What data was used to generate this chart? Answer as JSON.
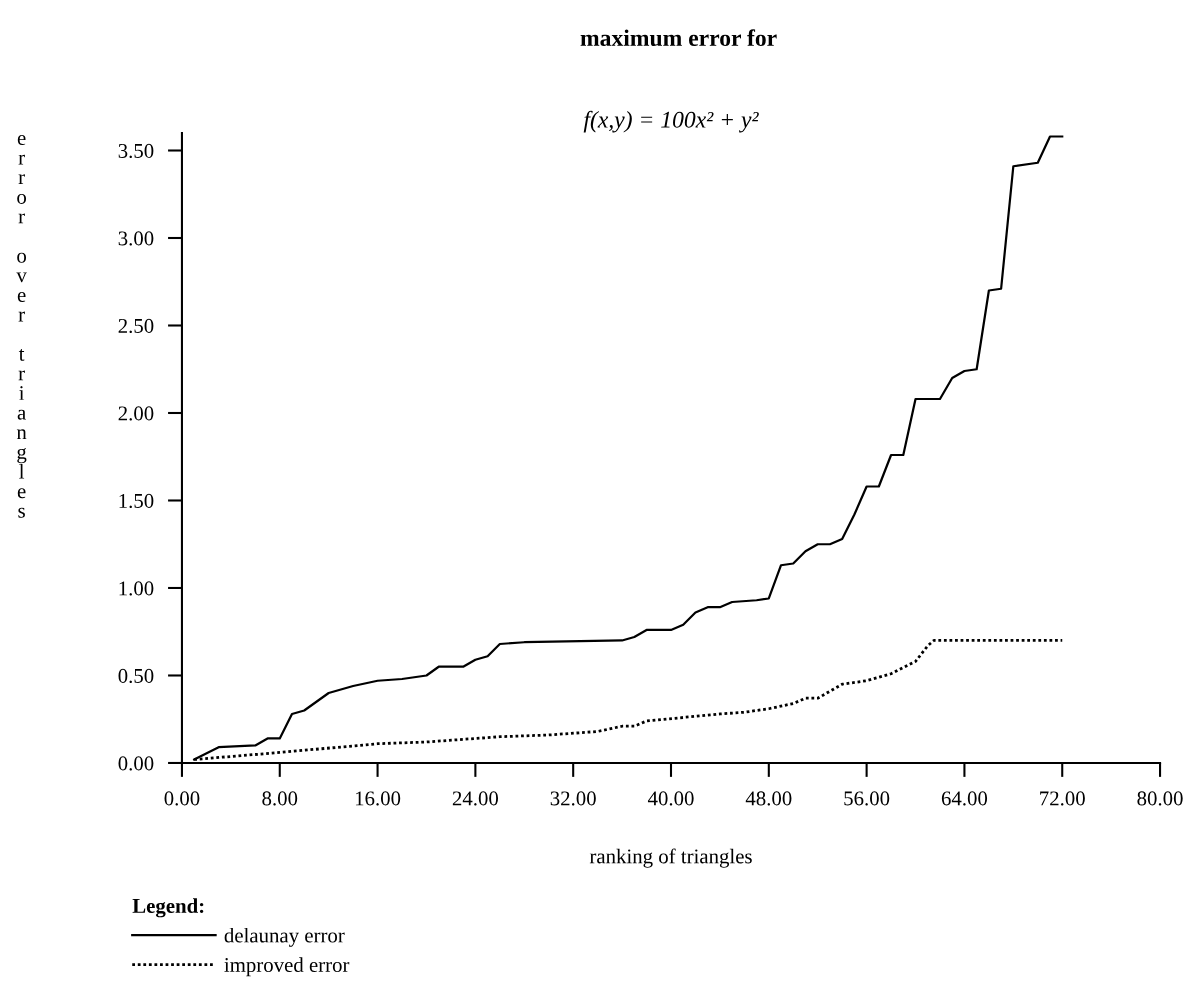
{
  "chart_data": {
    "type": "line",
    "title": "maximum error for",
    "subtitle": "f(x,y) = 100x² + y²",
    "xlabel": "ranking of triangles",
    "ylabel": "error over triangles",
    "legend_title": "Legend:",
    "legend": "bottom left",
    "xlim": [
      0,
      80
    ],
    "ylim": [
      0,
      3.6
    ],
    "xticks": [
      {
        "value": 0,
        "label": "0.00"
      },
      {
        "value": 8,
        "label": "8.00"
      },
      {
        "value": 16,
        "label": "16.00"
      },
      {
        "value": 24,
        "label": "24.00"
      },
      {
        "value": 32,
        "label": "32.00"
      },
      {
        "value": 40,
        "label": "40.00"
      },
      {
        "value": 48,
        "label": "48.00"
      },
      {
        "value": 56,
        "label": "56.00"
      },
      {
        "value": 64,
        "label": "64.00"
      },
      {
        "value": 72,
        "label": "72.00"
      },
      {
        "value": 80,
        "label": "80.00"
      }
    ],
    "yticks": [
      {
        "value": 0,
        "label": "0.00"
      },
      {
        "value": 0.5,
        "label": "0.50"
      },
      {
        "value": 1,
        "label": "1.00"
      },
      {
        "value": 1.5,
        "label": "1.50"
      },
      {
        "value": 2,
        "label": "2.00"
      },
      {
        "value": 2.5,
        "label": "2.50"
      },
      {
        "value": 3,
        "label": "3.00"
      },
      {
        "value": 3.5,
        "label": "3.50"
      }
    ],
    "grid": false,
    "marker": "none",
    "series": [
      {
        "name": "delaunay error",
        "color": "#000000",
        "line_style": "solid",
        "x": [
          1,
          3,
          6,
          7,
          8,
          9,
          10,
          12,
          14,
          16,
          18,
          20,
          21,
          23,
          24,
          25,
          26,
          28,
          36,
          37,
          38,
          40,
          41,
          42,
          43,
          44,
          45,
          47,
          48,
          49,
          50,
          51,
          52,
          53,
          54,
          55,
          56,
          57,
          58,
          59,
          60,
          62,
          63,
          64,
          65,
          66,
          67,
          68,
          70,
          71,
          72
        ],
        "values": [
          0.02,
          0.09,
          0.1,
          0.14,
          0.14,
          0.28,
          0.3,
          0.4,
          0.44,
          0.47,
          0.48,
          0.5,
          0.55,
          0.55,
          0.59,
          0.61,
          0.68,
          0.69,
          0.7,
          0.72,
          0.76,
          0.76,
          0.79,
          0.86,
          0.89,
          0.89,
          0.92,
          0.93,
          0.94,
          1.13,
          1.14,
          1.21,
          1.25,
          1.25,
          1.28,
          1.42,
          1.58,
          1.58,
          1.76,
          1.76,
          2.08,
          2.08,
          2.2,
          2.24,
          2.25,
          2.7,
          2.71,
          3.41,
          3.43,
          3.58,
          3.58
        ]
      },
      {
        "name": "improved error",
        "color": "#000000",
        "line_style": "dotted",
        "x": [
          1,
          8,
          16,
          20,
          26,
          30,
          34,
          36,
          37,
          38,
          44,
          46,
          48,
          50,
          51,
          52,
          54,
          56,
          58,
          60,
          61,
          61.5,
          72
        ],
        "values": [
          0.02,
          0.06,
          0.11,
          0.12,
          0.15,
          0.16,
          0.18,
          0.21,
          0.21,
          0.24,
          0.28,
          0.29,
          0.31,
          0.34,
          0.37,
          0.37,
          0.45,
          0.47,
          0.51,
          0.58,
          0.67,
          0.7,
          0.7
        ]
      }
    ]
  }
}
